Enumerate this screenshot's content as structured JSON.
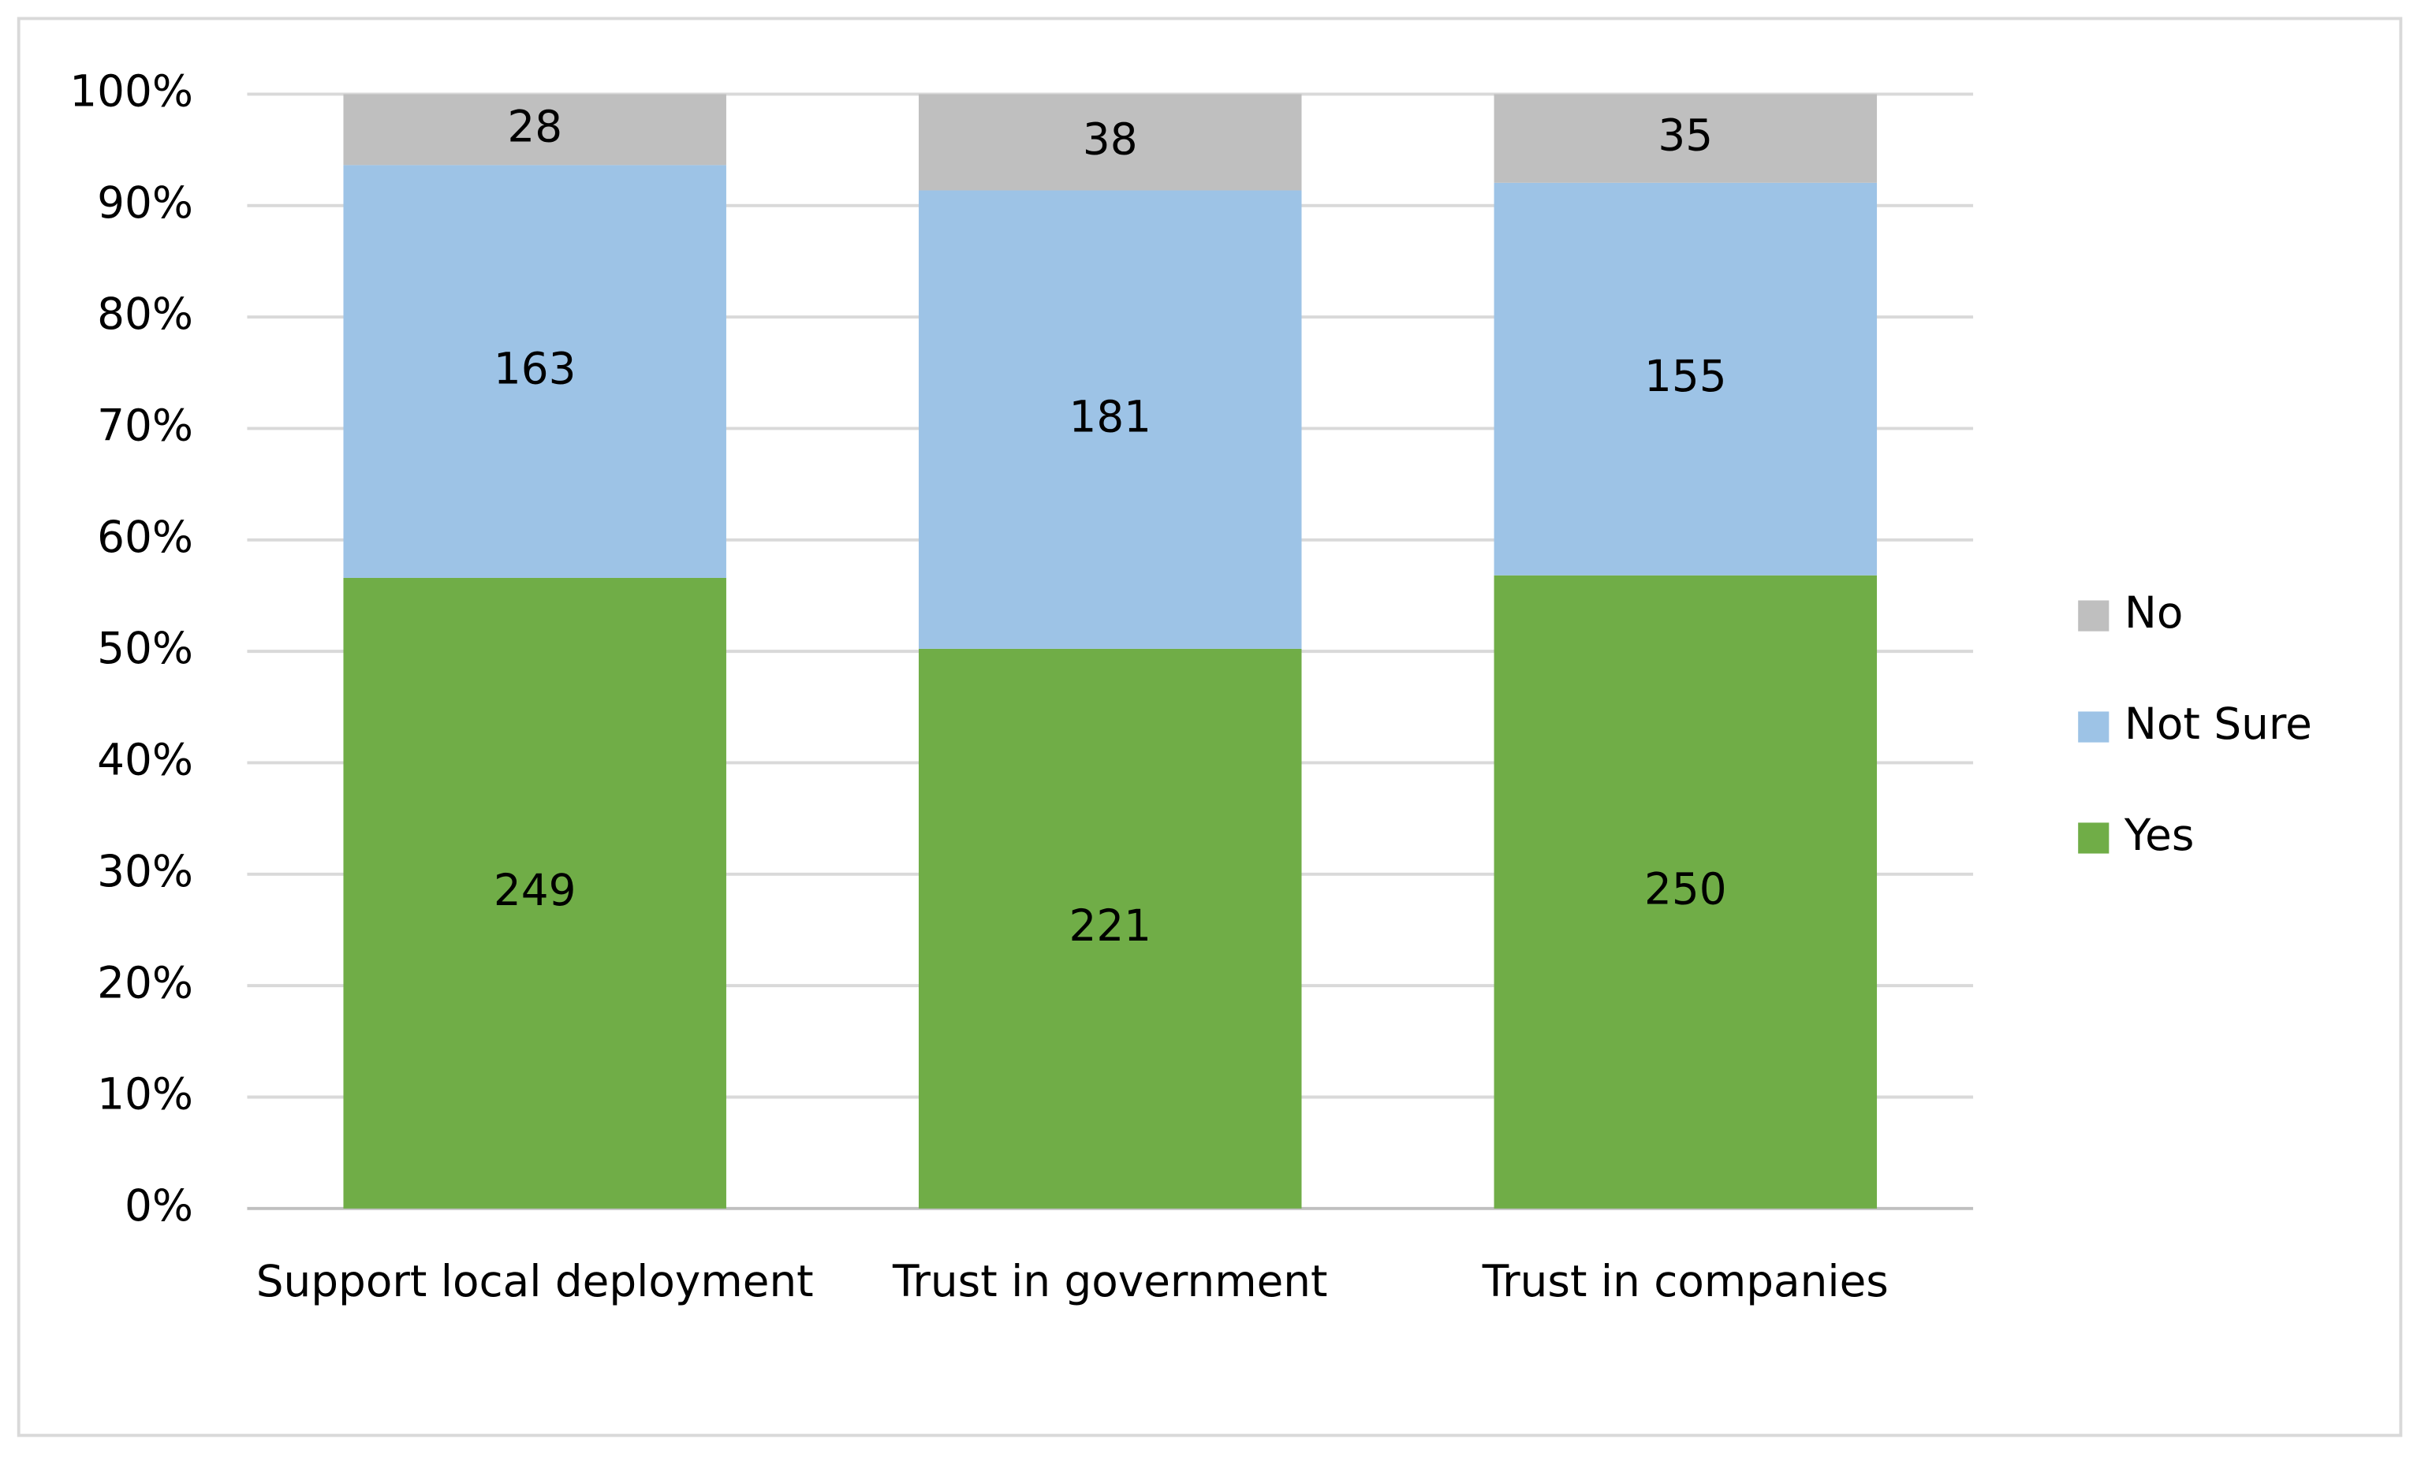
{
  "chart_data": {
    "type": "bar",
    "stacking": "percent",
    "categories": [
      "Support local deployment",
      "Trust in government",
      "Trust in companies"
    ],
    "series": [
      {
        "name": "Yes",
        "color": "#70ad47",
        "values": [
          249,
          221,
          250
        ]
      },
      {
        "name": "Not Sure",
        "color": "#9dc3e6",
        "values": [
          163,
          181,
          155
        ]
      },
      {
        "name": "No",
        "color": "#bfbfbf",
        "values": [
          28,
          38,
          35
        ]
      }
    ],
    "ylim": [
      0,
      100
    ],
    "yticks": [
      {
        "value": 0,
        "label": "0%"
      },
      {
        "value": 10,
        "label": "10%"
      },
      {
        "value": 20,
        "label": "20%"
      },
      {
        "value": 30,
        "label": "30%"
      },
      {
        "value": 40,
        "label": "40%"
      },
      {
        "value": 50,
        "label": "50%"
      },
      {
        "value": 60,
        "label": "60%"
      },
      {
        "value": 70,
        "label": "70%"
      },
      {
        "value": 80,
        "label": "80%"
      },
      {
        "value": 90,
        "label": "90%"
      },
      {
        "value": 100,
        "label": "100%"
      }
    ],
    "grid": true,
    "legend": "right"
  }
}
